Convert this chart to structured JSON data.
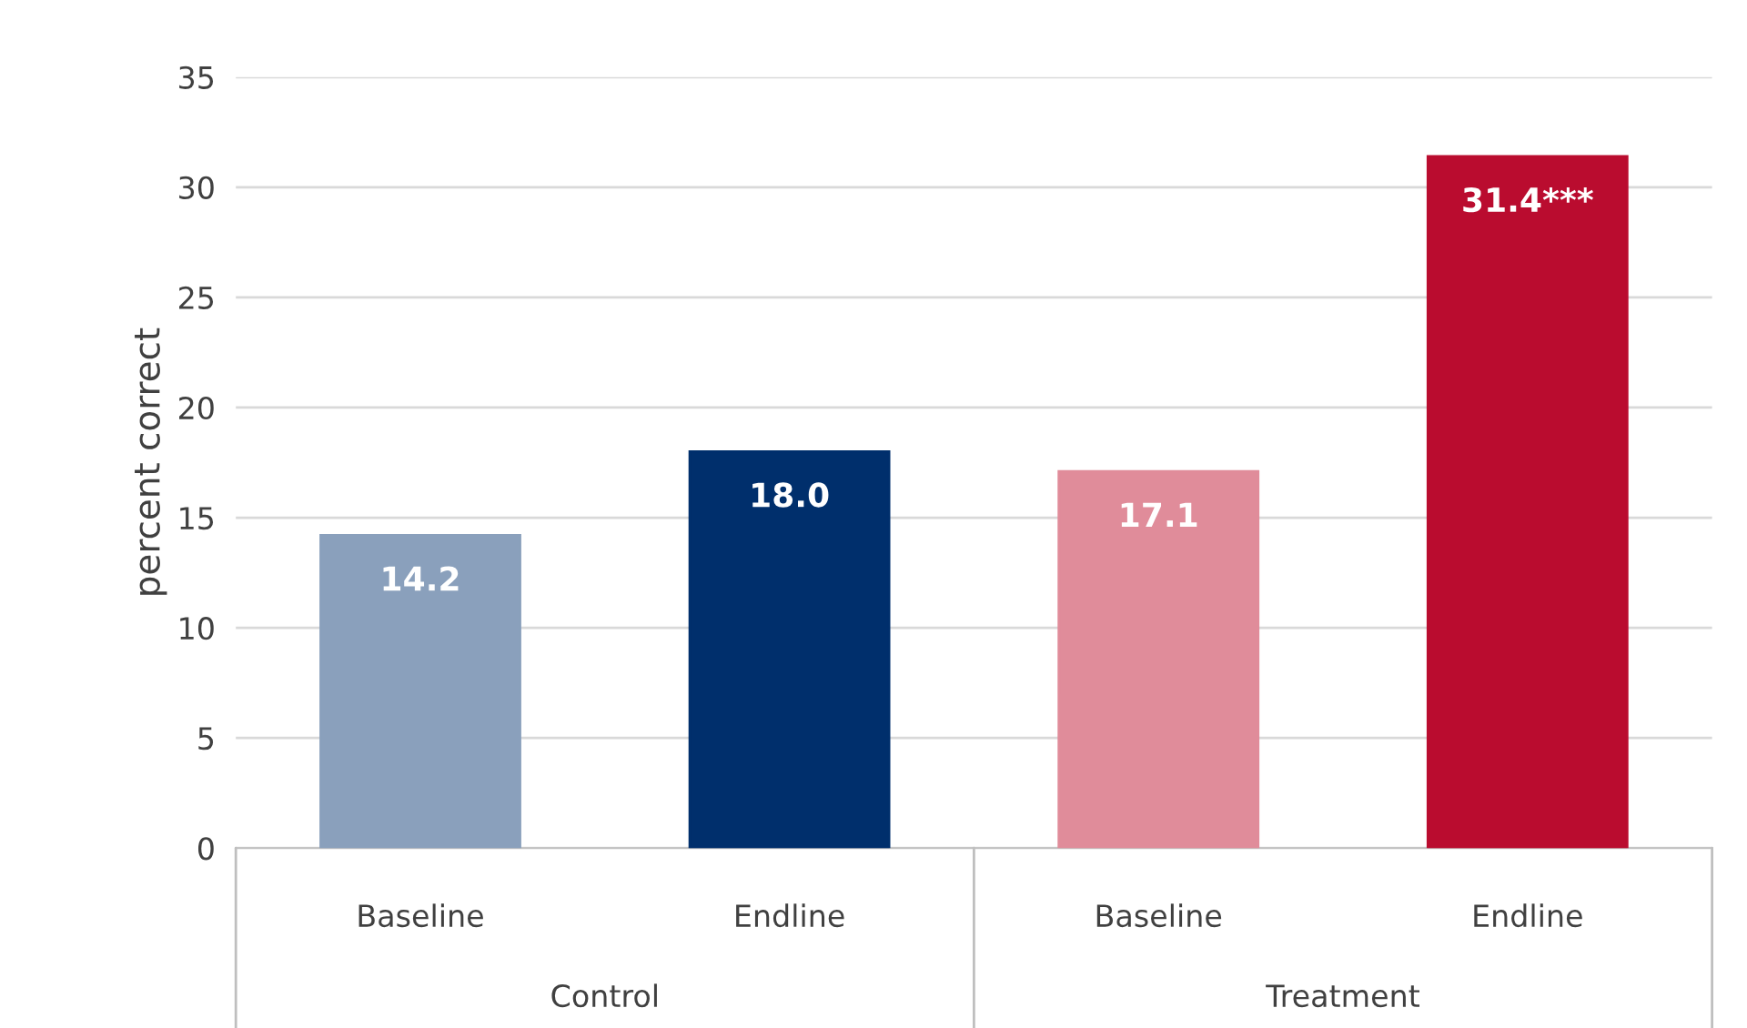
{
  "chart_data": {
    "type": "bar",
    "ylabel": "percent correct",
    "categories": [
      "Baseline",
      "Endline",
      "Baseline",
      "Endline"
    ],
    "values": [
      14.2,
      18.0,
      17.1,
      31.4
    ],
    "colors": [
      "#8aa0bc",
      "#002f6c",
      "#e08c9a",
      "#ba0c2f"
    ],
    "value_labels": [
      "14.2",
      "18.0",
      "17.1",
      "31.4***"
    ],
    "annotations": [
      "Control",
      "Treatment"
    ],
    "ylim": [
      0,
      35
    ],
    "yticks": [
      0,
      5,
      10,
      15,
      20,
      25,
      30,
      35
    ],
    "grid": "y"
  }
}
